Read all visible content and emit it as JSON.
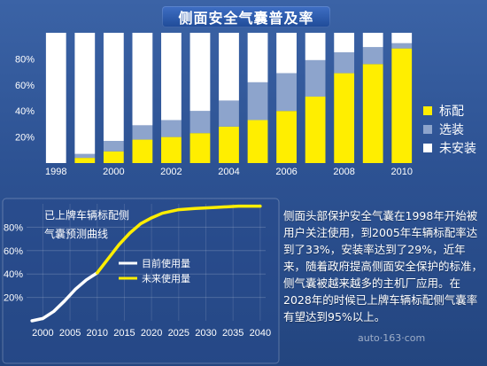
{
  "chart_data": [
    {
      "type": "bar",
      "stacked": true,
      "normalized": true,
      "title": "侧面安全气囊普及率",
      "categories": [
        "1998",
        "1999",
        "2000",
        "2001",
        "2002",
        "2003",
        "2004",
        "2005",
        "2006",
        "2007",
        "2008",
        "2009",
        "2010"
      ],
      "x_tick_labels": [
        "1998",
        "2000",
        "2002",
        "2004",
        "2006",
        "2008",
        "2010"
      ],
      "y_tick_labels": [
        "20%",
        "40%",
        "60%",
        "80%"
      ],
      "ylim": [
        0,
        100
      ],
      "grid": false,
      "legend_position": "right",
      "series": [
        {
          "name": "标配",
          "color": "#ffee00",
          "values": [
            0,
            4,
            9,
            18,
            20,
            23,
            28,
            33,
            40,
            51,
            69,
            76,
            88
          ]
        },
        {
          "name": "选装",
          "color": "#8da4cc",
          "values": [
            0,
            3,
            8,
            11,
            13,
            17,
            20,
            29,
            29,
            28,
            16,
            13,
            4
          ]
        },
        {
          "name": "未安装",
          "color": "#ffffff",
          "values": [
            100,
            93,
            83,
            71,
            67,
            60,
            52,
            38,
            31,
            21,
            15,
            11,
            8
          ]
        }
      ]
    },
    {
      "type": "line",
      "title": "已上牌车辆标配侧气囊预测曲线",
      "title_lines": [
        "已上牌车辆标配侧",
        "气囊预测曲线"
      ],
      "xlim": [
        1997,
        2041
      ],
      "ylim": [
        0,
        100
      ],
      "x_tick_labels": [
        "2000",
        "2005",
        "2010",
        "2015",
        "2020",
        "2025",
        "2030",
        "2035",
        "2040"
      ],
      "y_tick_labels": [
        "20%",
        "40%",
        "60%",
        "80%"
      ],
      "grid": true,
      "legend_position": "center",
      "series": [
        {
          "name": "目前使用量",
          "color": "#ffffff",
          "x": [
            1998,
            2000,
            2002,
            2004,
            2006,
            2008,
            2010
          ],
          "y": [
            0,
            2,
            8,
            17,
            27,
            35,
            41
          ]
        },
        {
          "name": "未来使用量",
          "color": "#ffee00",
          "x": [
            2010,
            2012,
            2014,
            2016,
            2018,
            2020,
            2022,
            2025,
            2028,
            2032,
            2036,
            2040
          ],
          "y": [
            41,
            53,
            65,
            75,
            83,
            88,
            92,
            95,
            96,
            97,
            98,
            98
          ]
        }
      ]
    }
  ],
  "paragraph": "侧面头部保护安全气囊在1998年开始被用户关注使用，到2005年车辆标配率达到了33%，安装率达到了29%，近年来，随着政府提高侧面安全保护的标准，侧气囊被越来越多的主机厂应用。在2028年的时候已上牌车辆标配侧气囊率有望达到95%以上。",
  "watermark": "auto·163·com"
}
